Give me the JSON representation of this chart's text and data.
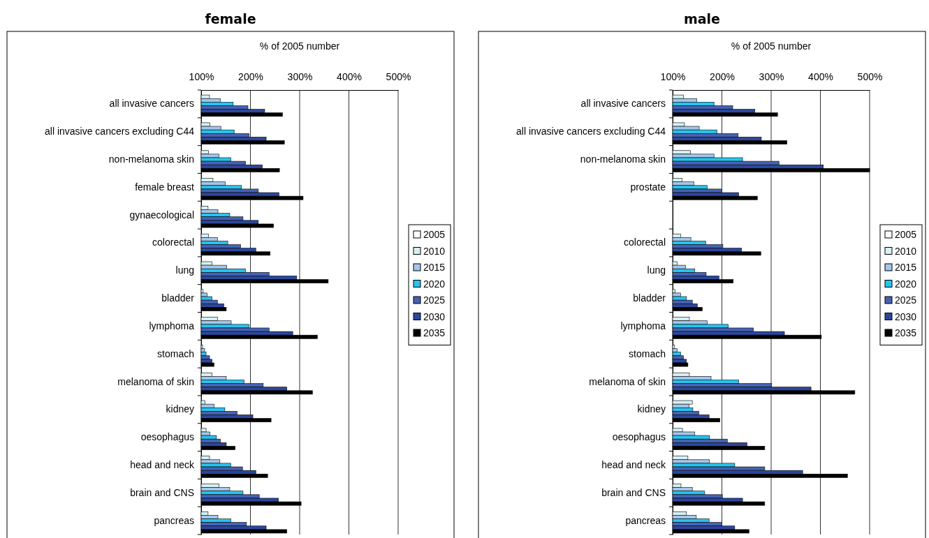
{
  "chart_data": [
    {
      "type": "bar",
      "orientation": "horizontal",
      "title": "female",
      "xlabel": "% of 2005 number",
      "legend": "right",
      "grid": "x",
      "xlim": [
        100,
        500
      ],
      "xticks": [
        {
          "value": 100,
          "label": "100%"
        },
        {
          "value": 200,
          "label": "200%"
        },
        {
          "value": 300,
          "label": "300%"
        },
        {
          "value": 400,
          "label": "400%"
        },
        {
          "value": 500,
          "label": "500%"
        }
      ],
      "categories": [
        "all invasive cancers",
        "all invasive cancers excluding C44",
        "non-melanoma skin",
        "female breast",
        "gynaecological",
        "colorectal",
        "lung",
        "bladder",
        "lymphoma",
        "stomach",
        "melanoma of skin",
        "kidney",
        "oesophagus",
        "head and neck",
        "brain and CNS",
        "pancreas"
      ],
      "series": [
        {
          "name": "2005",
          "color": "#ffffff",
          "values": [
            100,
            100,
            100,
            100,
            100,
            100,
            100,
            100,
            100,
            100,
            100,
            100,
            100,
            100,
            100,
            100
          ]
        },
        {
          "name": "2010",
          "color": "#d6f0f3",
          "values": [
            117,
            118,
            115,
            124,
            114,
            115,
            122,
            104,
            133,
            103,
            122,
            108,
            110,
            117,
            136,
            114
          ]
        },
        {
          "name": "2015",
          "color": "#a4c6ea",
          "values": [
            139,
            140,
            136,
            149,
            134,
            133,
            152,
            112,
            161,
            107,
            151,
            126,
            118,
            138,
            158,
            134
          ]
        },
        {
          "name": "2020",
          "color": "#27c4ee",
          "values": [
            165,
            167,
            160,
            182,
            158,
            154,
            190,
            122,
            197,
            110,
            187,
            148,
            131,
            160,
            185,
            160
          ]
        },
        {
          "name": "2025",
          "color": "#4563b3",
          "values": [
            195,
            197,
            190,
            216,
            185,
            180,
            238,
            133,
            238,
            117,
            226,
            173,
            139,
            184,
            218,
            192
          ]
        },
        {
          "name": "2030",
          "color": "#2b479d",
          "values": [
            229,
            232,
            224,
            258,
            216,
            211,
            294,
            146,
            286,
            122,
            274,
            205,
            151,
            211,
            257,
            232
          ]
        },
        {
          "name": "2035",
          "color": "#000000",
          "values": [
            265,
            269,
            259,
            307,
            247,
            240,
            358,
            151,
            336,
            126,
            326,
            242,
            169,
            235,
            303,
            274
          ]
        }
      ]
    },
    {
      "type": "bar",
      "orientation": "horizontal",
      "title": "male",
      "xlabel": "% of 2005 number",
      "legend": "right",
      "grid": "x",
      "xlim": [
        100,
        500
      ],
      "xticks": [
        {
          "value": 100,
          "label": "100%"
        },
        {
          "value": 200,
          "label": "200%"
        },
        {
          "value": 300,
          "label": "300%"
        },
        {
          "value": 400,
          "label": "400%"
        },
        {
          "value": 500,
          "label": "500%"
        }
      ],
      "categories": [
        "all invasive cancers",
        "all invasive cancers excluding C44",
        "non-melanoma skin",
        "prostate",
        null,
        "colorectal",
        "lung",
        "bladder",
        "lymphoma",
        "stomach",
        "melanoma of skin",
        "kidney",
        "oesophagus",
        "head and neck",
        "brain and CNS",
        "pancreas"
      ],
      "series": [
        {
          "name": "2005",
          "color": "#ffffff",
          "values": [
            100,
            100,
            100,
            100,
            null,
            100,
            100,
            100,
            100,
            100,
            100,
            100,
            100,
            100,
            100,
            100
          ]
        },
        {
          "name": "2010",
          "color": "#d6f0f3",
          "values": [
            122,
            124,
            136,
            119,
            null,
            116,
            109,
            105,
            134,
            104,
            134,
            140,
            120,
            131,
            117,
            128
          ]
        },
        {
          "name": "2015",
          "color": "#a4c6ea",
          "values": [
            149,
            154,
            184,
            143,
            null,
            137,
            126,
            116,
            170,
            109,
            178,
            133,
            145,
            175,
            140,
            148
          ]
        },
        {
          "name": "2020",
          "color": "#27c4ee",
          "values": [
            184,
            190,
            242,
            170,
            null,
            167,
            145,
            128,
            213,
            116,
            234,
            141,
            175,
            226,
            165,
            174
          ]
        },
        {
          "name": "2025",
          "color": "#4563b3",
          "values": [
            222,
            233,
            316,
            200,
            null,
            202,
            168,
            140,
            264,
            122,
            301,
            153,
            211,
            287,
            201,
            200
          ]
        },
        {
          "name": "2030",
          "color": "#2b479d",
          "values": [
            267,
            280,
            406,
            234,
            null,
            240,
            194,
            150,
            327,
            128,
            381,
            174,
            251,
            364,
            242,
            226
          ]
        },
        {
          "name": "2035",
          "color": "#000000",
          "values": [
            313,
            332,
            500,
            272,
            null,
            279,
            223,
            160,
            402,
            131,
            470,
            196,
            287,
            455,
            287,
            255
          ]
        }
      ]
    }
  ]
}
